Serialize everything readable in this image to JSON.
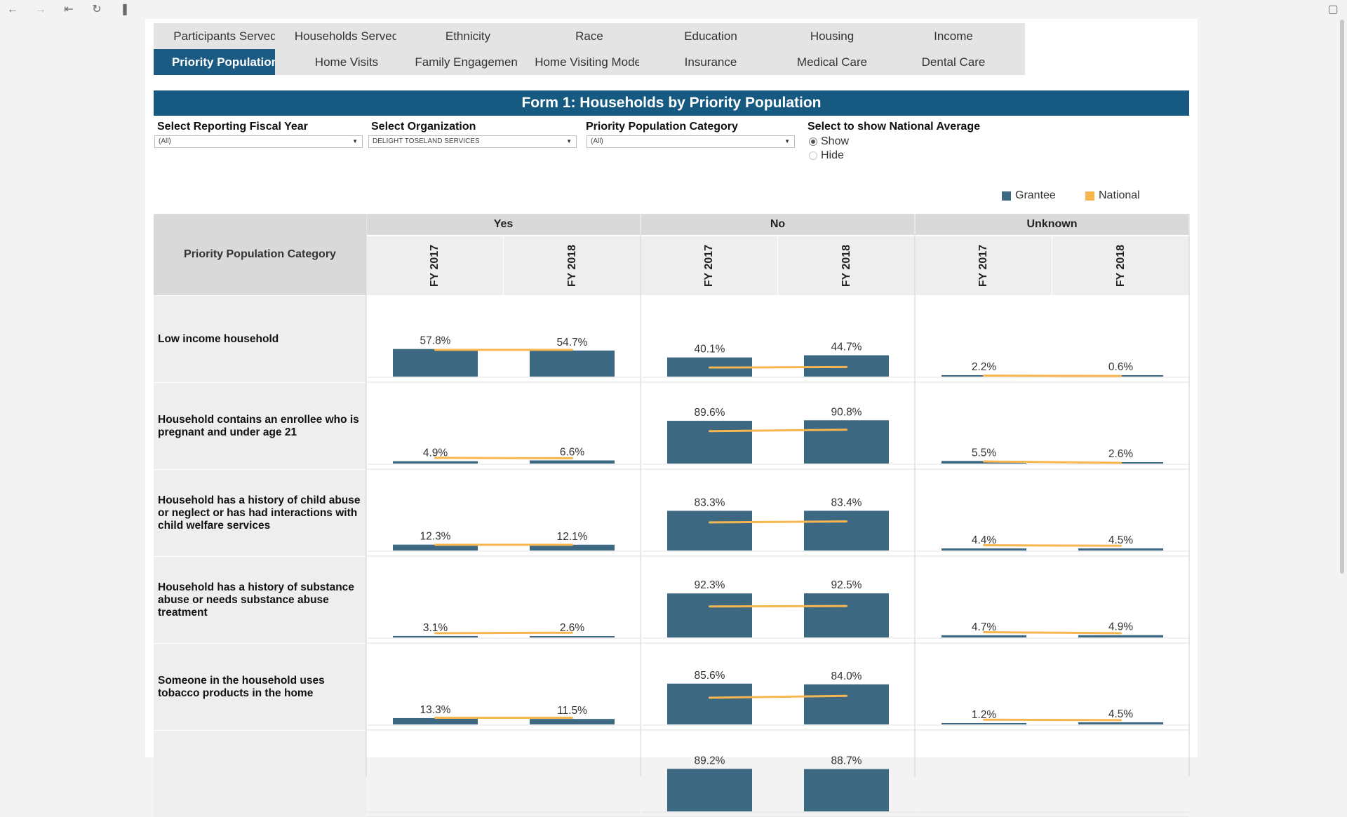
{
  "toolbar": {
    "icons": [
      "back-arrow-icon",
      "forward-arrow-icon",
      "first-page-icon",
      "revert-icon",
      "pause-icon",
      "fullscreen-icon"
    ]
  },
  "nav": {
    "row1": [
      "Participants Served",
      "Households Served",
      "Ethnicity",
      "Race",
      "Education",
      "Housing",
      "Income"
    ],
    "row2": [
      "Priority Population",
      "Home Visits",
      "Family Engagement",
      "Home Visiting Model",
      "Insurance",
      "Medical Care",
      "Dental Care"
    ],
    "active": "Priority Population"
  },
  "banner_title": "Form 1: Households by Priority Population",
  "filters": {
    "year": {
      "label": "Select Reporting Fiscal Year",
      "value": "(All)"
    },
    "org": {
      "label": "Select Organization",
      "value": "DELIGHT TOSELAND SERVICES"
    },
    "category": {
      "label": "Priority Population Category",
      "value": "(All)"
    },
    "national": {
      "label": "Select to show National Average",
      "options": [
        "Show",
        "Hide"
      ],
      "selected": "Show"
    }
  },
  "legend": {
    "grantee": "Grantee",
    "national": "National",
    "grantee_color": "#3d6882",
    "national_color": "#f7b650"
  },
  "table": {
    "corner_label": "Priority Population Category",
    "groups": [
      "Yes",
      "No",
      "Unknown"
    ],
    "years": [
      "FY 2017",
      "FY 2018"
    ]
  },
  "chart_data": {
    "type": "bar",
    "title": "Form 1: Households by Priority Population",
    "groups": [
      "Yes",
      "No",
      "Unknown"
    ],
    "years": [
      "FY 2017",
      "FY 2018"
    ],
    "series": [
      {
        "name": "Grantee"
      },
      {
        "name": "National"
      }
    ],
    "rows": [
      {
        "category": "Low income household",
        "grantee": [
          [
            57.8,
            54.7
          ],
          [
            40.1,
            44.7
          ],
          [
            2.2,
            0.6
          ]
        ],
        "labels": [
          [
            "57.8%",
            "54.7%"
          ],
          [
            "40.1%",
            "44.7%"
          ],
          [
            "2.2%",
            "0.6%"
          ]
        ],
        "national": [
          [
            56,
            56
          ],
          [
            19,
            20
          ],
          [
            2.0,
            1.2
          ]
        ]
      },
      {
        "category": "Household contains an enrollee who is pregnant and under age 21",
        "grantee": [
          [
            4.9,
            6.6
          ],
          [
            89.6,
            90.8
          ],
          [
            5.5,
            2.6
          ]
        ],
        "labels": [
          [
            "4.9%",
            "6.6%"
          ],
          [
            "89.6%",
            "90.8%"
          ],
          [
            "5.5%",
            "2.6%"
          ]
        ],
        "national": [
          [
            12,
            11
          ],
          [
            68,
            71
          ],
          [
            4.5,
            1.5
          ]
        ]
      },
      {
        "category": "Household has a history of child abuse or neglect or has had interactions with child welfare services",
        "grantee": [
          [
            12.3,
            12.1
          ],
          [
            83.3,
            83.4
          ],
          [
            4.4,
            4.5
          ]
        ],
        "labels": [
          [
            "12.3%",
            "12.1%"
          ],
          [
            "83.3%",
            "83.4%"
          ],
          [
            "4.4%",
            "4.5%"
          ]
        ],
        "national": [
          [
            12,
            12
          ],
          [
            59,
            61
          ],
          [
            11,
            10
          ]
        ]
      },
      {
        "category": "Household has a history of substance abuse or needs substance abuse treatment",
        "grantee": [
          [
            3.1,
            2.6
          ],
          [
            92.3,
            92.5
          ],
          [
            4.7,
            4.9
          ]
        ],
        "labels": [
          [
            "3.1%",
            "2.6%"
          ],
          [
            "92.3%",
            "92.5%"
          ],
          [
            "4.7%",
            "4.9%"
          ]
        ],
        "national": [
          [
            9,
            10
          ],
          [
            65,
            66
          ],
          [
            11,
            9
          ]
        ]
      },
      {
        "category": "Someone in the household uses tobacco products in the home",
        "grantee": [
          [
            13.3,
            11.5
          ],
          [
            85.6,
            84.0
          ],
          [
            1.2,
            4.5
          ]
        ],
        "labels": [
          [
            "13.3%",
            "11.5%"
          ],
          [
            "85.6%",
            "84.0%"
          ],
          [
            "1.2%",
            "4.5%"
          ]
        ],
        "national": [
          [
            14,
            14
          ],
          [
            56,
            60
          ],
          [
            10,
            9
          ]
        ]
      },
      {
        "category": "",
        "grantee": [
          [
            null,
            null
          ],
          [
            89.2,
            88.7
          ],
          [
            null,
            null
          ]
        ],
        "labels": [
          [
            "",
            ""
          ],
          [
            "89.2%",
            "88.7%"
          ],
          [
            "",
            ""
          ]
        ],
        "national": [
          [
            null,
            null
          ],
          [
            null,
            null
          ],
          [
            null,
            null
          ]
        ]
      }
    ],
    "ylim": [
      0,
      100
    ]
  }
}
